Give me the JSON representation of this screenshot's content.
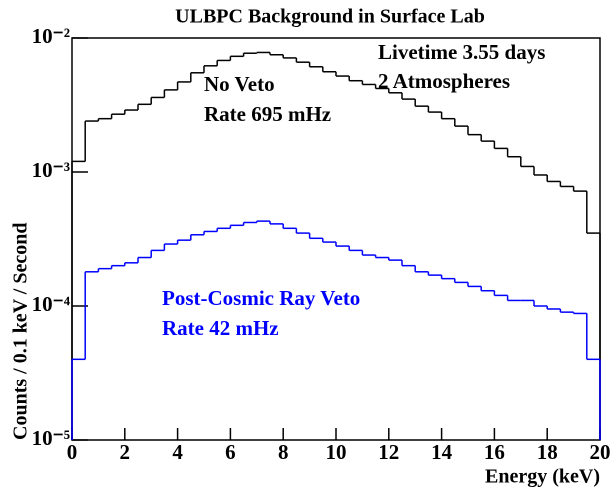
{
  "chart_data": {
    "type": "histogram",
    "title": "ULBPC Background in Surface Lab",
    "x_label": "Energy (keV)",
    "y_label": "Counts / 0.1 keV / Second",
    "bins": [
      0,
      0.5,
      1,
      1.5,
      2,
      2.5,
      3,
      3.5,
      4,
      4.5,
      5,
      5.5,
      6,
      6.5,
      7,
      7.5,
      8,
      8.5,
      9,
      9.5,
      10,
      10.5,
      11,
      11.5,
      12,
      12.5,
      13,
      13.5,
      14,
      14.5,
      15,
      15.5,
      16,
      16.5,
      17,
      17.5,
      18,
      18.5,
      19,
      19.5,
      20
    ],
    "series": [
      {
        "name": "No Veto",
        "color": "#000000",
        "values": [
          0.0012,
          0.0024,
          0.0025,
          0.0027,
          0.0029,
          0.0032,
          0.0036,
          0.0041,
          0.0047,
          0.0055,
          0.0062,
          0.0068,
          0.0073,
          0.0077,
          0.0078,
          0.0075,
          0.0071,
          0.0066,
          0.0061,
          0.0056,
          0.0052,
          0.0048,
          0.0045,
          0.0042,
          0.0039,
          0.0035,
          0.0031,
          0.0028,
          0.0025,
          0.0022,
          0.0019,
          0.0017,
          0.0015,
          0.0013,
          0.0011,
          0.00095,
          0.00085,
          0.00078,
          0.00072,
          0.00035
        ]
      },
      {
        "name": "Post-Cosmic Ray Veto",
        "color": "#0000ff",
        "values": [
          4e-05,
          0.00018,
          0.00019,
          0.0002,
          0.00021,
          0.00023,
          0.00026,
          0.00029,
          0.00031,
          0.00034,
          0.00036,
          0.00038,
          0.0004,
          0.00042,
          0.00043,
          0.00041,
          0.00038,
          0.00035,
          0.00032,
          0.0003,
          0.00028,
          0.00026,
          0.00024,
          0.00023,
          0.00022,
          0.0002,
          0.00018,
          0.00017,
          0.00016,
          0.00015,
          0.00014,
          0.00013,
          0.00012,
          0.00011,
          0.00011,
          0.0001,
          9.5e-05,
          9e-05,
          8.8e-05,
          4e-05
        ]
      }
    ],
    "annotations": [
      {
        "text": "Livetime 3.55 days",
        "color": "#000000"
      },
      {
        "text": "2 Atmospheres",
        "color": "#000000"
      },
      {
        "text": "No Veto",
        "color": "#000000"
      },
      {
        "text": "Rate 695 mHz",
        "color": "#000000"
      },
      {
        "text": "Post-Cosmic Ray Veto",
        "color": "#0000ff"
      },
      {
        "text": "Rate 42 mHz",
        "color": "#0000ff"
      }
    ],
    "xlim": [
      0,
      20
    ],
    "xticks": [
      0,
      2,
      4,
      6,
      8,
      10,
      12,
      14,
      16,
      18,
      20
    ],
    "ylim": [
      1e-05,
      0.01
    ],
    "yticks": [
      {
        "value": 1e-05,
        "label": "10⁻⁵"
      },
      {
        "value": 0.0001,
        "label": "10⁻⁴"
      },
      {
        "value": 0.001,
        "label": "10⁻³"
      },
      {
        "value": 0.01,
        "label": "10⁻²"
      }
    ],
    "log_y": true
  }
}
